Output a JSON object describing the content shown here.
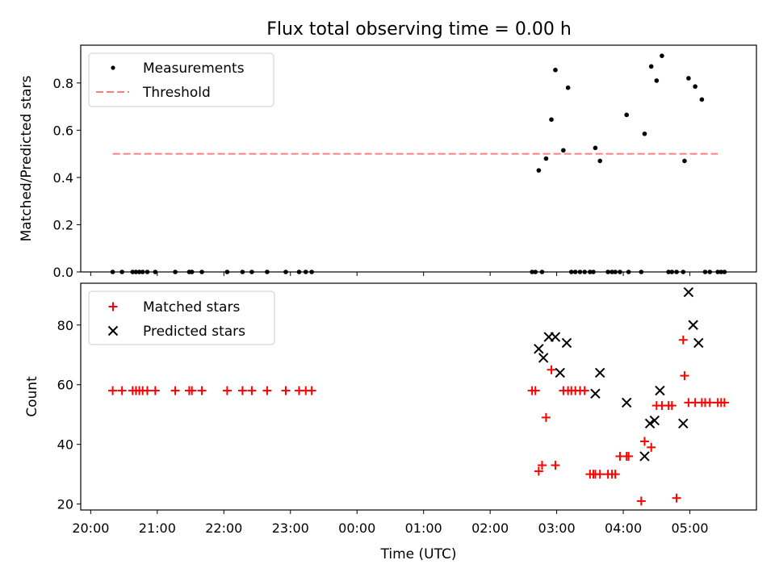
{
  "figure_title": "Flux total observing time = 0.00 h",
  "colors": {
    "measurements": "#000000",
    "threshold": "#ff7f7f",
    "matched": "#ff0000",
    "predicted": "#000000"
  },
  "chart_data": [
    {
      "type": "scatter",
      "title": "Flux total observing time = 0.00 h",
      "xlabel": "",
      "ylabel": "Matched/Predicted stars",
      "xlim": [
        19.85,
        30.0
      ],
      "ylim": [
        0,
        0.96
      ],
      "yticks": [
        0.0,
        0.2,
        0.4,
        0.6,
        0.8
      ],
      "ytick_labels": [
        "0.0",
        "0.2",
        "0.4",
        "0.6",
        "0.8"
      ],
      "legend": {
        "position": "top-left",
        "entries": [
          "Measurements",
          "Threshold"
        ]
      },
      "series": [
        {
          "name": "Measurements",
          "marker": "dot",
          "x": [
            20.33,
            20.47,
            20.63,
            20.68,
            20.73,
            20.78,
            20.85,
            20.97,
            21.27,
            21.48,
            21.52,
            21.67,
            22.05,
            22.28,
            22.42,
            22.65,
            22.93,
            23.13,
            23.23,
            23.32,
            26.63,
            26.68,
            26.73,
            26.78,
            26.84,
            26.92,
            26.98,
            27.1,
            27.17,
            27.22,
            27.28,
            27.35,
            27.42,
            27.5,
            27.55,
            27.58,
            27.65,
            27.77,
            27.83,
            27.88,
            27.95,
            28.05,
            28.08,
            28.27,
            28.32,
            28.42,
            28.5,
            28.58,
            28.68,
            28.73,
            28.8,
            28.9,
            28.92,
            28.98,
            29.08,
            29.18,
            29.23,
            29.3,
            29.42,
            29.47,
            29.52
          ],
          "y": [
            0,
            0,
            0,
            0,
            0,
            0,
            0,
            0,
            0,
            0,
            0,
            0,
            0,
            0,
            0,
            0,
            0,
            0,
            0,
            0,
            0,
            0,
            0.43,
            0,
            0.48,
            0.645,
            0.855,
            0.515,
            0.78,
            0,
            0,
            0,
            0,
            0,
            0,
            0.525,
            0.47,
            0,
            0,
            0,
            0,
            0.665,
            0,
            0,
            0.585,
            0.87,
            0.81,
            0.915,
            0,
            0,
            0,
            0,
            0.47,
            0.82,
            0.785,
            0.73,
            0,
            0,
            0,
            0,
            0
          ]
        },
        {
          "name": "Threshold",
          "type": "line",
          "style": "dashed",
          "x": [
            20.33,
            29.42
          ],
          "y": [
            0.5,
            0.5
          ]
        }
      ]
    },
    {
      "type": "scatter",
      "title": "",
      "xlabel": "Time (UTC)",
      "ylabel": "Count",
      "xlim": [
        19.85,
        30.0
      ],
      "ylim": [
        18,
        94
      ],
      "yticks": [
        20,
        40,
        60,
        80
      ],
      "ytick_labels": [
        "20",
        "40",
        "60",
        "80"
      ],
      "xticks": [
        20,
        21,
        22,
        23,
        24,
        25,
        26,
        27,
        28,
        29
      ],
      "xtick_labels": [
        "20:00",
        "21:00",
        "22:00",
        "23:00",
        "00:00",
        "01:00",
        "02:00",
        "03:00",
        "04:00",
        "05:00"
      ],
      "legend": {
        "position": "top-left",
        "entries": [
          "Matched stars",
          "Predicted stars"
        ]
      },
      "series": [
        {
          "name": "Matched stars",
          "marker": "plus",
          "x": [
            20.33,
            20.47,
            20.63,
            20.68,
            20.73,
            20.78,
            20.85,
            20.97,
            21.27,
            21.48,
            21.52,
            21.67,
            22.05,
            22.28,
            22.42,
            22.65,
            22.93,
            23.13,
            23.23,
            23.32,
            26.63,
            26.68,
            26.73,
            26.78,
            26.84,
            26.92,
            26.98,
            27.1,
            27.17,
            27.22,
            27.28,
            27.35,
            27.42,
            27.5,
            27.55,
            27.58,
            27.65,
            27.77,
            27.83,
            27.88,
            27.95,
            28.05,
            28.08,
            28.27,
            28.32,
            28.42,
            28.5,
            28.58,
            28.68,
            28.73,
            28.8,
            28.9,
            28.92,
            28.98,
            29.08,
            29.18,
            29.23,
            29.3,
            29.42,
            29.47,
            29.52
          ],
          "y": [
            58,
            58,
            58,
            58,
            58,
            58,
            58,
            58,
            58,
            58,
            58,
            58,
            58,
            58,
            58,
            58,
            58,
            58,
            58,
            58,
            58,
            58,
            31,
            33,
            49,
            65,
            33,
            58,
            58,
            58,
            58,
            58,
            58,
            30,
            30,
            30,
            30,
            30,
            30,
            30,
            36,
            36,
            36,
            21,
            41,
            39,
            53,
            53,
            53,
            53,
            22,
            75,
            63,
            54,
            54,
            54,
            54,
            54,
            54,
            54,
            54
          ]
        },
        {
          "name": "Predicted stars",
          "marker": "x",
          "x": [
            26.73,
            26.8,
            26.88,
            26.98,
            27.05,
            27.15,
            27.58,
            27.65,
            28.05,
            28.32,
            28.4,
            28.47,
            28.55,
            28.9,
            28.98,
            29.05,
            29.13
          ],
          "y": [
            72,
            69,
            76,
            76,
            64,
            74,
            57,
            64,
            54,
            36,
            47,
            48,
            58,
            47,
            91,
            80,
            74
          ]
        }
      ]
    }
  ]
}
